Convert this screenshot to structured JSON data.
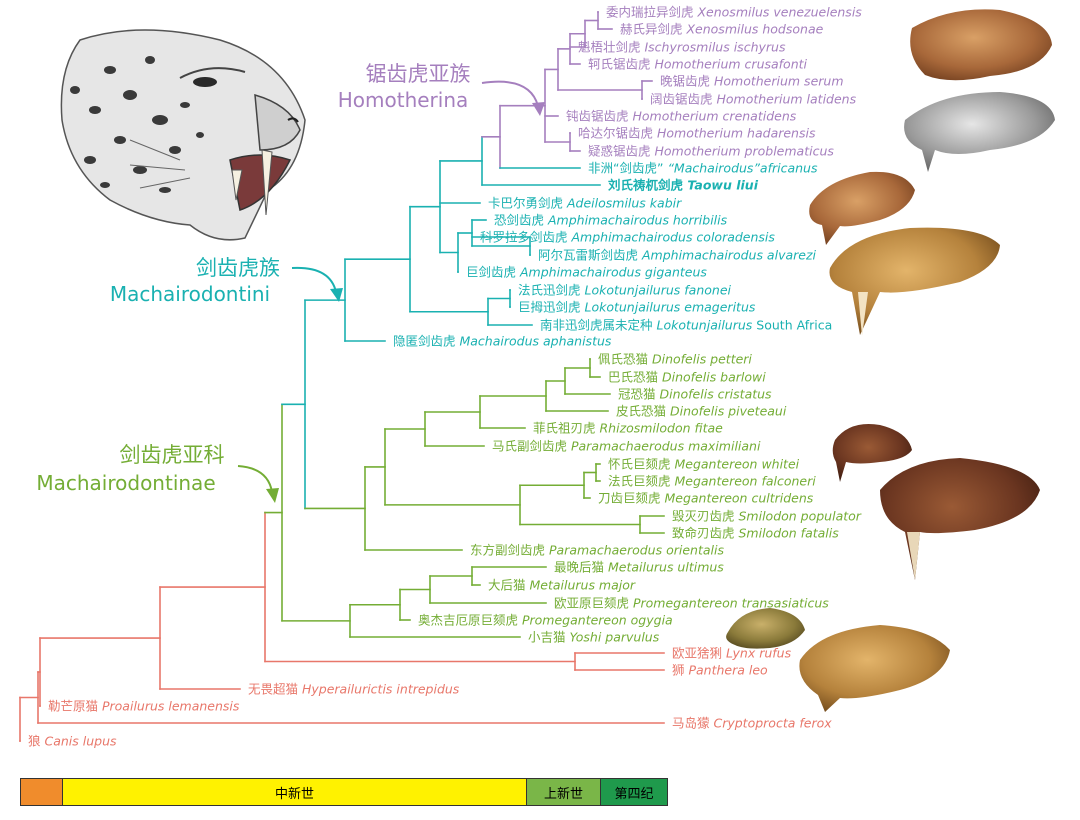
{
  "colors": {
    "homotherina": "#a57fbe",
    "machairodontini": "#1ab1b1",
    "machairodontinae": "#74ad35",
    "outgroup": "#e8776a",
    "bar_paleogene": "#f08c2c",
    "bar_miocene": "#fff200",
    "bar_pliocene": "#7ab648",
    "bar_quaternary": "#1f9a4c"
  },
  "groups": {
    "homotherina": {
      "cn": "锯齿虎亚族",
      "la": "Homotherina"
    },
    "machairodontini": {
      "cn": "剑齿虎族",
      "la": "Machairodontini"
    },
    "machairodontinae": {
      "cn": "剑齿虎亚科",
      "la": "Machairodontinae"
    }
  },
  "taxa": [
    {
      "cn": "委内瑞拉异剑虎",
      "sci": "Xenosmilus venezuelensis",
      "group": "homotherina"
    },
    {
      "cn": "赫氏异剑虎",
      "sci": "Xenosmilus hodsonae",
      "group": "homotherina"
    },
    {
      "cn": "魁梧壮剑虎",
      "sci": "Ischyrosmilus ischyrus",
      "group": "homotherina"
    },
    {
      "cn": "轲氏锯齿虎",
      "sci": "Homotherium crusafonti",
      "group": "homotherina"
    },
    {
      "cn": "晚锯齿虎",
      "sci": "Homotherium serum",
      "group": "homotherina"
    },
    {
      "cn": "阔齿锯齿虎",
      "sci": "Homotherium latidens",
      "group": "homotherina"
    },
    {
      "cn": "钝齿锯齿虎",
      "sci": "Homotherium crenatidens",
      "group": "homotherina"
    },
    {
      "cn": "哈达尔锯齿虎",
      "sci": "Homotherium hadarensis",
      "group": "homotherina"
    },
    {
      "cn": "疑惑锯齿虎",
      "sci": "Homotherium problematicus",
      "group": "homotherina"
    },
    {
      "cn": "非洲“剑齿虎”",
      "sci": "“Machairodus”africanus",
      "group": "machairodontini"
    },
    {
      "cn": "刘氏祷杌剑虎",
      "sci": "Taowu liui",
      "group": "machairodontini",
      "bold": true
    },
    {
      "cn": "卡巴尔勇剑虎",
      "sci": "Adeilosmilus kabir",
      "group": "machairodontini"
    },
    {
      "cn": "恐剑齿虎",
      "sci": "Amphimachairodus horribilis",
      "group": "machairodontini"
    },
    {
      "cn": "科罗拉多剑齿虎",
      "sci": "Amphimachairodus coloradensis",
      "group": "machairodontini"
    },
    {
      "cn": "阿尔瓦雷斯剑齿虎",
      "sci": "Amphimachairodus alvarezi",
      "group": "machairodontini"
    },
    {
      "cn": "巨剑齿虎",
      "sci": "Amphimachairodus giganteus",
      "group": "machairodontini"
    },
    {
      "cn": "法氏迅剑虎",
      "sci": "Lokotunjailurus fanonei",
      "group": "machairodontini"
    },
    {
      "cn": "巨拇迅剑虎",
      "sci": "Lokotunjailurus emageritus",
      "group": "machairodontini"
    },
    {
      "cn": "南非迅剑虎属未定种",
      "sci": "Lokotunjailurus",
      "sci_tail": " South Africa",
      "group": "machairodontini"
    },
    {
      "cn": "隐匿剑齿虎",
      "sci": "Machairodus aphanistus",
      "group": "machairodontini"
    },
    {
      "cn": "佩氏恐猫",
      "sci": "Dinofelis petteri",
      "group": "machairodontinae"
    },
    {
      "cn": "巴氏恐猫",
      "sci": "Dinofelis barlowi",
      "group": "machairodontinae"
    },
    {
      "cn": "冠恐猫",
      "sci": "Dinofelis cristatus",
      "group": "machairodontinae"
    },
    {
      "cn": "皮氏恐猫",
      "sci": "Dinofelis piveteaui",
      "group": "machairodontinae"
    },
    {
      "cn": "菲氏祖刃虎",
      "sci": "Rhizosmilodon fitae",
      "group": "machairodontinae"
    },
    {
      "cn": "马氏副剑齿虎",
      "sci": "Paramachaerodus maximiliani",
      "group": "machairodontinae"
    },
    {
      "cn": "怀氏巨颏虎",
      "sci": "Megantereon whitei",
      "group": "machairodontinae"
    },
    {
      "cn": "法氏巨颏虎",
      "sci": "Megantereon falconeri",
      "group": "machairodontinae"
    },
    {
      "cn": "刀齿巨颏虎",
      "sci": "Megantereon cultridens",
      "group": "machairodontinae"
    },
    {
      "cn": "毁灭刃齿虎",
      "sci": "Smilodon populator",
      "group": "machairodontinae"
    },
    {
      "cn": "致命刃齿虎",
      "sci": "Smilodon fatalis",
      "group": "machairodontinae"
    },
    {
      "cn": "东方副剑齿虎",
      "sci": "Paramachaerodus orientalis",
      "group": "machairodontinae"
    },
    {
      "cn": "最晚后猫",
      "sci": "Metailurus ultimus",
      "group": "machairodontinae"
    },
    {
      "cn": "大后猫",
      "sci": "Metailurus major",
      "group": "machairodontinae"
    },
    {
      "cn": "欧亚原巨颏虎",
      "sci": "Promegantereon transasiaticus",
      "group": "machairodontinae"
    },
    {
      "cn": "奥杰吉厄原巨颏虎",
      "sci": "Promegantereon ogygia",
      "group": "machairodontinae"
    },
    {
      "cn": "小吉猫",
      "sci": "Yoshi parvulus",
      "group": "machairodontinae"
    },
    {
      "cn": "欧亚猞猁",
      "sci": "Lynx rufus",
      "group": "outgroup"
    },
    {
      "cn": "狮",
      "sci": "Panthera leo",
      "group": "outgroup"
    },
    {
      "cn": "无畏超猫",
      "sci": "Hyperailurictis intrepidus",
      "group": "outgroup"
    },
    {
      "cn": "勒芒原猫",
      "sci": "Proailurus lemanensis",
      "group": "outgroup"
    },
    {
      "cn": "马岛獴",
      "sci": "Cryptoprocta ferox",
      "group": "outgroup"
    },
    {
      "cn": "狼",
      "sci": "Canis lupus",
      "group": "outgroup"
    }
  ],
  "timescale": [
    {
      "label": "",
      "color": "#f08c2c"
    },
    {
      "label": "中新世",
      "color": "#fff200"
    },
    {
      "label": "上新世",
      "color": "#7ab648"
    },
    {
      "label": "第四纪",
      "color": "#1f9a4c"
    }
  ]
}
